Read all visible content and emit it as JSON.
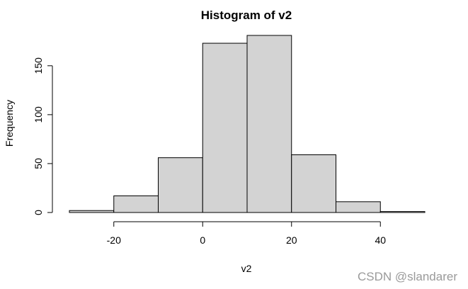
{
  "chart_data": {
    "type": "bar",
    "title": "Histogram of v2",
    "xlabel": "v2",
    "ylabel": "Frequency",
    "bins": [
      {
        "start": -30,
        "end": -20,
        "count": 2
      },
      {
        "start": -20,
        "end": -10,
        "count": 17
      },
      {
        "start": -10,
        "end": 0,
        "count": 56
      },
      {
        "start": 0,
        "end": 10,
        "count": 173
      },
      {
        "start": 10,
        "end": 20,
        "count": 181
      },
      {
        "start": 20,
        "end": 30,
        "count": 59
      },
      {
        "start": 30,
        "end": 40,
        "count": 11
      },
      {
        "start": 40,
        "end": 50,
        "count": 1
      }
    ],
    "xlim": [
      -30,
      50
    ],
    "ylim": [
      0,
      181
    ],
    "x_ticks": [
      -20,
      0,
      20,
      40
    ],
    "x_tick_labels": [
      "-20",
      "0",
      "20",
      "40"
    ],
    "y_ticks": [
      0,
      50,
      100,
      150
    ],
    "y_tick_labels": [
      "0",
      "50",
      "100",
      "150"
    ],
    "bar_fill": "#d3d3d3",
    "bar_stroke": "#000000",
    "grid": false,
    "legend": "none"
  },
  "watermark": "CSDN @slandarer"
}
